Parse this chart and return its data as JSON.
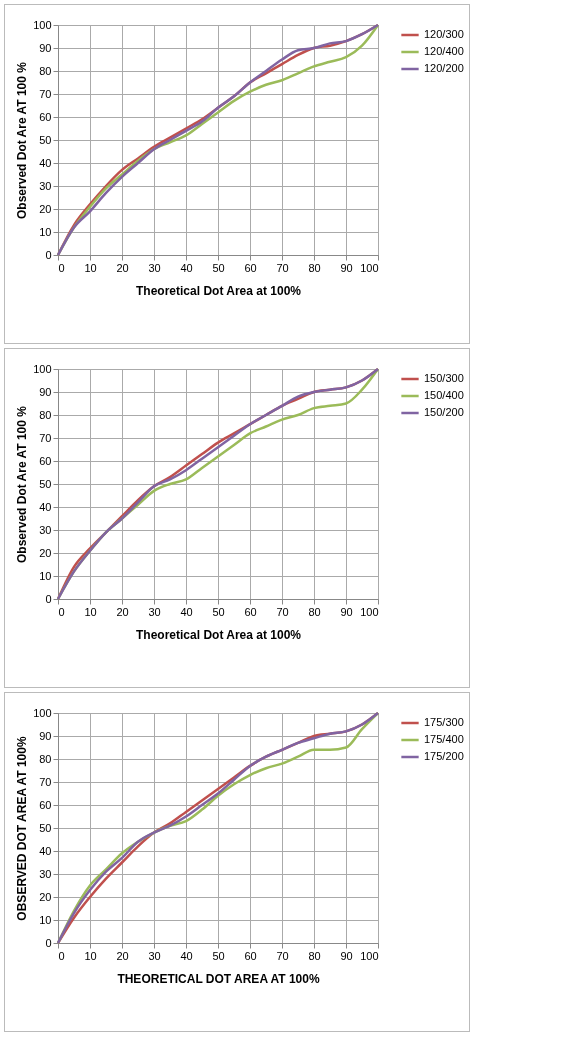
{
  "chart_data": [
    {
      "type": "line",
      "xlabel": "Theoretical Dot Area at 100%",
      "ylabel": "Observed Dot Are AT 100 %",
      "x": [
        0,
        5,
        10,
        15,
        20,
        25,
        30,
        35,
        40,
        45,
        50,
        55,
        60,
        65,
        70,
        75,
        80,
        85,
        90,
        95,
        100
      ],
      "xlim": [
        0,
        100
      ],
      "ylim": [
        0,
        100
      ],
      "xticks": [
        0,
        10,
        20,
        30,
        40,
        50,
        60,
        70,
        80,
        90,
        100
      ],
      "yticks": [
        0,
        10,
        20,
        30,
        40,
        50,
        60,
        70,
        80,
        90,
        100
      ],
      "grid": true,
      "legend": "right",
      "series": [
        {
          "name": "120/300",
          "color": "#c0504d",
          "values": [
            0,
            13,
            22,
            30,
            37,
            42,
            47,
            51,
            55,
            59,
            64,
            69,
            75,
            79,
            83,
            87,
            90,
            91,
            93,
            96,
            100
          ]
        },
        {
          "name": "120/400",
          "color": "#9bbb59",
          "values": [
            0,
            12,
            21,
            29,
            35,
            41,
            46,
            49,
            52,
            57,
            62,
            67,
            71,
            74,
            76,
            79,
            82,
            84,
            86,
            91,
            100
          ]
        },
        {
          "name": "120/200",
          "color": "#8064a2",
          "values": [
            0,
            12,
            19,
            27,
            34,
            40,
            46,
            50,
            54,
            58,
            64,
            69,
            75,
            80,
            85,
            89,
            90,
            92,
            93,
            96,
            100
          ]
        }
      ]
    },
    {
      "type": "line",
      "xlabel": "Theoretical Dot Area at 100%",
      "ylabel": "Observed Dot Are AT 100 %",
      "x": [
        0,
        5,
        10,
        15,
        20,
        25,
        30,
        35,
        40,
        45,
        50,
        55,
        60,
        65,
        70,
        75,
        80,
        85,
        90,
        95,
        100
      ],
      "xlim": [
        0,
        100
      ],
      "ylim": [
        0,
        100
      ],
      "xticks": [
        0,
        10,
        20,
        30,
        40,
        50,
        60,
        70,
        80,
        90,
        100
      ],
      "yticks": [
        0,
        10,
        20,
        30,
        40,
        50,
        60,
        70,
        80,
        90,
        100
      ],
      "grid": true,
      "legend": "right",
      "series": [
        {
          "name": "150/300",
          "color": "#c0504d",
          "values": [
            0,
            14,
            22,
            29,
            36,
            43,
            49,
            53,
            58,
            63,
            68,
            72,
            76,
            80,
            84,
            87,
            90,
            91,
            92,
            95,
            100
          ]
        },
        {
          "name": "150/400",
          "color": "#9bbb59",
          "values": [
            0,
            12,
            21,
            29,
            35,
            41,
            47,
            50,
            52,
            57,
            62,
            67,
            72,
            75,
            78,
            80,
            83,
            84,
            85,
            91,
            100
          ]
        },
        {
          "name": "150/200",
          "color": "#8064a2",
          "values": [
            0,
            12,
            21,
            29,
            35,
            42,
            49,
            52,
            56,
            61,
            66,
            71,
            76,
            80,
            84,
            88,
            90,
            91,
            92,
            95,
            100
          ]
        }
      ]
    },
    {
      "type": "line",
      "xlabel": "THEORETICAL DOT AREA AT 100%",
      "ylabel": "OBSERVED DOT AREA AT 100%",
      "x": [
        0,
        5,
        10,
        15,
        20,
        25,
        30,
        35,
        40,
        45,
        50,
        55,
        60,
        65,
        70,
        75,
        80,
        85,
        90,
        95,
        100
      ],
      "xlim": [
        0,
        100
      ],
      "ylim": [
        0,
        100
      ],
      "xticks": [
        0,
        10,
        20,
        30,
        40,
        50,
        60,
        70,
        80,
        90,
        100
      ],
      "yticks": [
        0,
        10,
        20,
        30,
        40,
        50,
        60,
        70,
        80,
        90,
        100
      ],
      "grid": true,
      "legend": "right",
      "series": [
        {
          "name": "175/300",
          "color": "#c0504d",
          "values": [
            0,
            11,
            20,
            28,
            35,
            42,
            48,
            52,
            57,
            62,
            67,
            72,
            77,
            81,
            84,
            87,
            90,
            91,
            92,
            95,
            100
          ]
        },
        {
          "name": "175/400",
          "color": "#9bbb59",
          "values": [
            0,
            14,
            25,
            32,
            39,
            44,
            48,
            51,
            53,
            58,
            64,
            69,
            73,
            76,
            78,
            81,
            84,
            84,
            85,
            93,
            100
          ]
        },
        {
          "name": "175/200",
          "color": "#8064a2",
          "values": [
            0,
            13,
            23,
            31,
            37,
            44,
            48,
            51,
            55,
            60,
            65,
            71,
            77,
            81,
            84,
            87,
            89,
            91,
            92,
            95,
            100
          ]
        }
      ]
    }
  ]
}
